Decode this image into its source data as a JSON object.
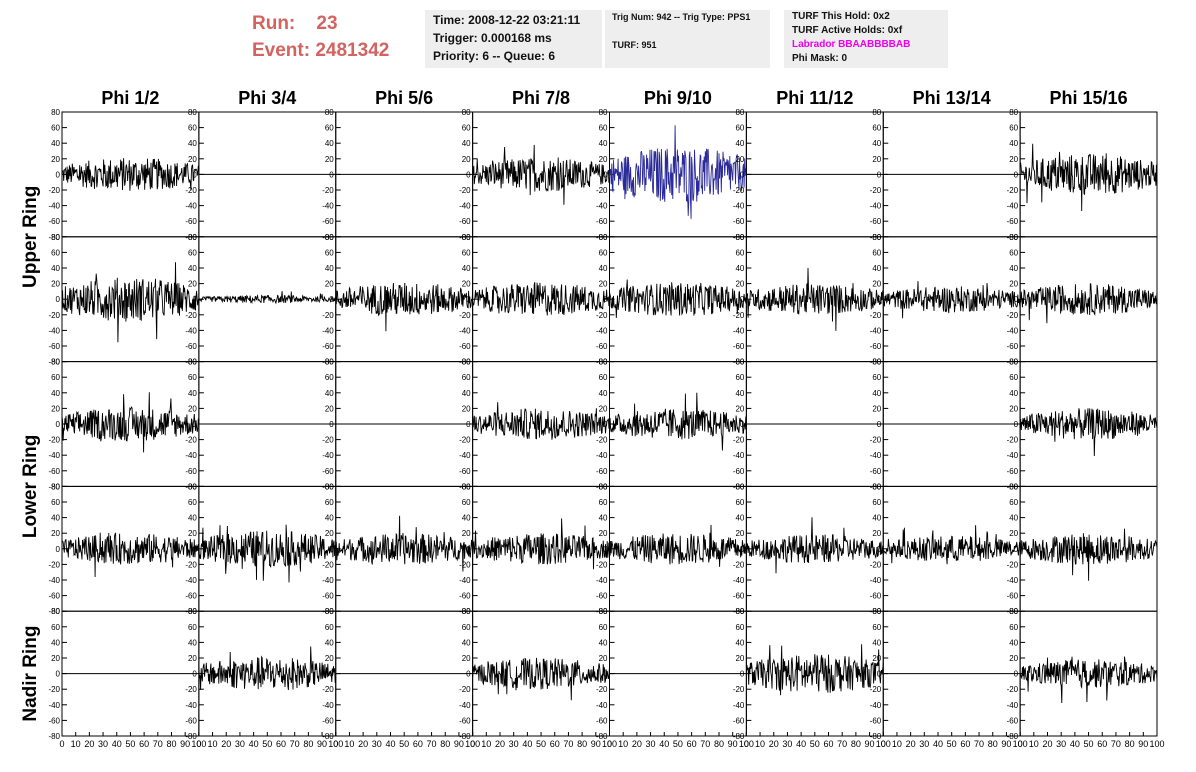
{
  "header": {
    "run_label": "Run:",
    "run_value": "23",
    "event_label": "Event:",
    "event_value": "2481342"
  },
  "info_box": {
    "time": "Time: 2008-12-22 03:21:11",
    "trigger": "Trigger: 0.000168 ms",
    "priority": "Priority: 6 -- Queue: 6"
  },
  "trig_box": {
    "trig": "Trig Num: 942 -- Trig Type: PPS1",
    "turf": "TURF: 951"
  },
  "turf_box": {
    "hold": "TURF This Hold: 0x2",
    "active_holds": "TURF Active Holds: 0xf",
    "labrador": "Labrador BBAABBBBAB",
    "phi_mask": "Phi Mask: 0",
    "labrador_color": "#ee00ee"
  },
  "chart_data": {
    "type": "line",
    "description_of_layout": "grid",
    "columns": [
      "Phi 1/2",
      "Phi 3/4",
      "Phi 5/6",
      "Phi 7/8",
      "Phi 9/10",
      "Phi 11/12",
      "Phi 13/14",
      "Phi 15/16"
    ],
    "ring_labels": [
      "Upper Ring",
      "Lower Ring",
      "Nadir Ring"
    ],
    "ring_rows": [
      [
        0,
        1
      ],
      [
        2,
        3
      ],
      [
        4,
        4
      ]
    ],
    "xlim": [
      0,
      100
    ],
    "ylim": [
      -80,
      80
    ],
    "x_ticks": [
      0,
      10,
      20,
      30,
      40,
      50,
      60,
      70,
      80,
      90,
      100
    ],
    "y_ticks": [
      -80,
      -60,
      -40,
      -20,
      0,
      20,
      40,
      60,
      80
    ],
    "trace_color": "#000000",
    "highlight_color": "#2a2a9a",
    "highlight_panel": [
      0,
      4
    ],
    "amplitudes": [
      [
        13,
        0,
        0,
        13,
        22,
        0,
        0,
        16
      ],
      [
        17,
        3,
        13,
        13,
        13,
        12,
        10,
        12
      ],
      [
        13,
        0,
        0,
        12,
        12,
        0,
        0,
        12
      ],
      [
        12,
        14,
        12,
        12,
        12,
        11,
        10,
        12
      ],
      [
        0,
        13,
        0,
        12,
        0,
        15,
        0,
        11
      ]
    ]
  }
}
